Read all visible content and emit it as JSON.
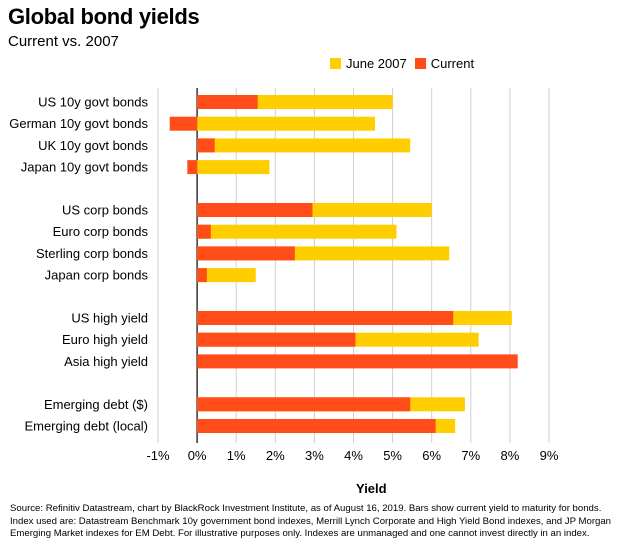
{
  "chart_data": {
    "type": "bar",
    "orientation": "horizontal",
    "title": "Global bond yields",
    "subtitle": "Current vs. 2007",
    "xlabel": "Yield",
    "ylabel": "",
    "xlim": [
      -1,
      9
    ],
    "ticks": [
      -1,
      0,
      1,
      2,
      3,
      4,
      5,
      6,
      7,
      8,
      9
    ],
    "tick_labels": [
      "-1%",
      "0%",
      "1%",
      "2%",
      "3%",
      "4%",
      "5%",
      "6%",
      "7%",
      "8%",
      "9%"
    ],
    "grid": true,
    "legend_position": "top-right",
    "categories": [
      "US 10y govt bonds",
      "German 10y govt bonds",
      "UK 10y govt bonds",
      "Japan 10y govt bonds",
      "US corp bonds",
      "Euro corp bonds",
      "Sterling corp bonds",
      "Japan corp bonds",
      "US high yield",
      "Euro high yield",
      "Asia high yield",
      "Emerging debt ($)",
      "Emerging debt (local)"
    ],
    "groups": [
      4,
      4,
      3,
      2
    ],
    "series": [
      {
        "name": "June 2007",
        "color": "#FFCE00",
        "values": [
          5.0,
          4.55,
          5.45,
          1.85,
          6.0,
          5.1,
          6.45,
          1.5,
          8.05,
          7.2,
          null,
          6.85,
          6.6
        ]
      },
      {
        "name": "Current",
        "color": "#FF4C18",
        "values": [
          1.55,
          -0.7,
          0.45,
          -0.25,
          2.95,
          0.35,
          2.5,
          0.25,
          6.55,
          4.05,
          8.2,
          5.45,
          6.1
        ]
      }
    ],
    "source": "Source: Refinitiv Datastream, chart by BlackRock Investment Institute, as of August 16, 2019.  Bars show current yield to maturity for bonds. Index used are: Datastream Benchmark 10y government bond indexes, Merrill Lynch Corporate and High Yield Bond indexes, and JP Morgan Emerging Market indexes for EM Debt. For illustrative purposes only. Indexes are unmanaged and one cannot invest directly in an index."
  }
}
